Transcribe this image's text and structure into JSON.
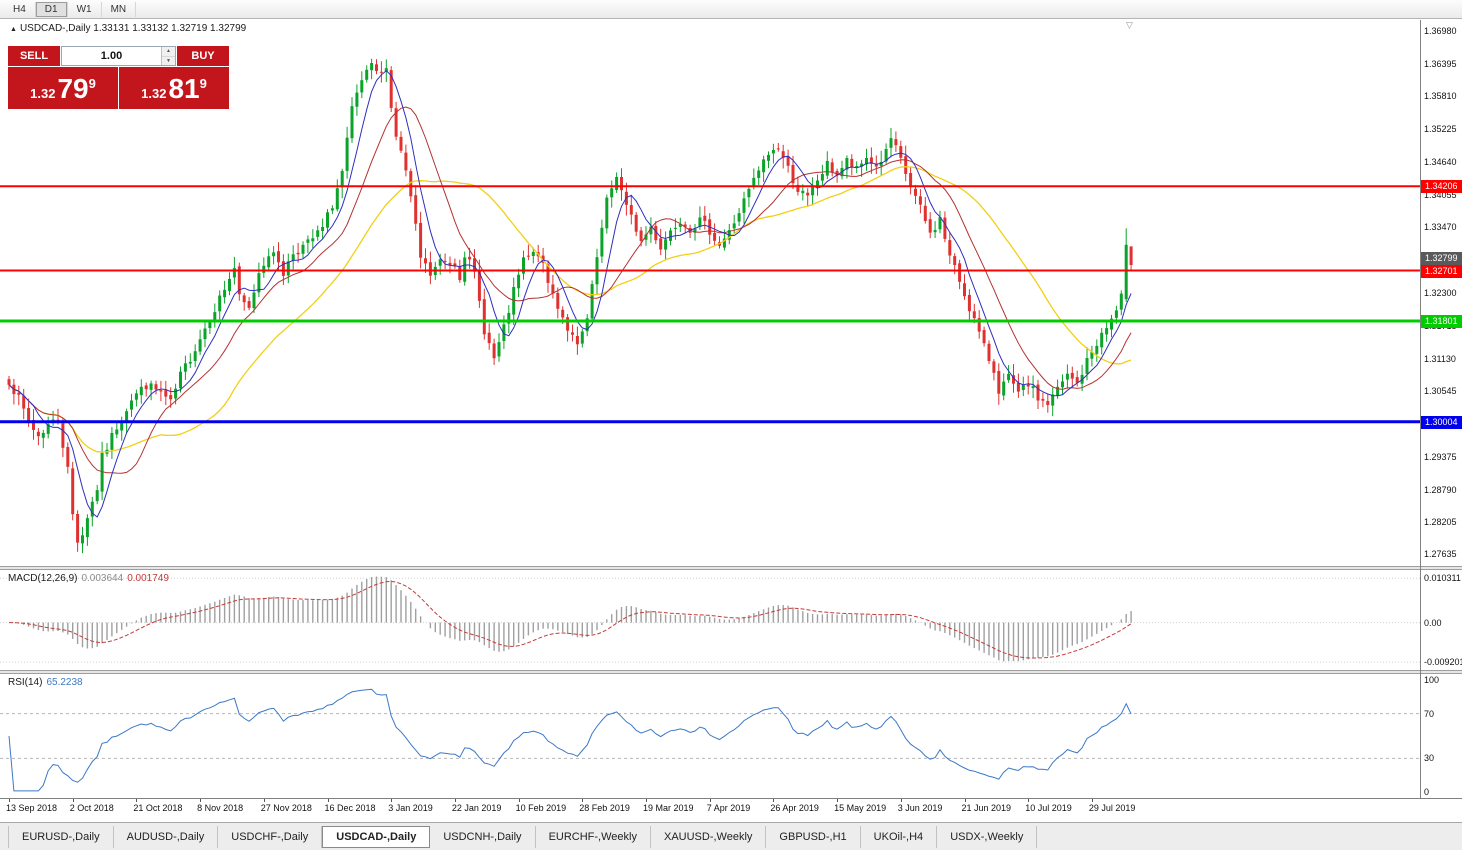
{
  "toolbar": {
    "timeframes": [
      "H4",
      "D1",
      "W1",
      "MN"
    ],
    "active": "D1"
  },
  "icons": {
    "title_marker": "▲",
    "shift_marker": "▽",
    "spin_up": "▲",
    "spin_down": "▼"
  },
  "chart_window": {
    "title_symbol": "USDCAD-,Daily",
    "title_ohlc": "1.33131 1.33132 1.32719 1.32799",
    "trade_panel": {
      "sell_label": "SELL",
      "buy_label": "BUY",
      "volume": "1.00",
      "sell_price": {
        "big": "1.32",
        "main": "79",
        "sup": "9"
      },
      "buy_price": {
        "big": "1.32",
        "main": "81",
        "sup": "9"
      },
      "panel_color": "#c3161c"
    }
  },
  "chart_data": {
    "type": "candlestick",
    "title": "USDCAD-,Daily",
    "symbol": "USDCAD",
    "timeframe": "Daily",
    "up_color": "#0ba32a",
    "down_color": "#e03131",
    "num_bars": 230,
    "bars_per_label": 13,
    "x_labels": [
      "13 Sep 2018",
      "2 Oct 2018",
      "21 Oct 2018",
      "8 Nov 2018",
      "27 Nov 2018",
      "16 Dec 2018",
      "3 Jan 2019",
      "22 Jan 2019",
      "10 Feb 2019",
      "28 Feb 2019",
      "19 Mar 2019",
      "7 Apr 2019",
      "26 Apr 2019",
      "15 May 2019",
      "3 Jun 2019",
      "21 Jun 2019",
      "10 Jul 2019",
      "29 Jul 2019"
    ],
    "y_axis_labels": [
      "1.36980",
      "1.36395",
      "1.35810",
      "1.35225",
      "1.34640",
      "1.34055",
      "1.33470",
      "1.32885",
      "1.32300",
      "1.31715",
      "1.31130",
      "1.30545",
      "1.29960",
      "1.29375",
      "1.28790",
      "1.28205",
      "1.27635"
    ],
    "price_range": {
      "max": 1.371,
      "min": 1.275
    },
    "noise_seed": 7,
    "price_anchors": [
      [
        0,
        1.3075
      ],
      [
        2,
        1.304
      ],
      [
        4,
        1.3
      ],
      [
        6,
        1.2975
      ],
      [
        8,
        1.2995
      ],
      [
        10,
        1.3005
      ],
      [
        12,
        1.2915
      ],
      [
        13,
        1.2835
      ],
      [
        14,
        1.279
      ],
      [
        15,
        1.28
      ],
      [
        16,
        1.2832
      ],
      [
        18,
        1.2882
      ],
      [
        19,
        1.2936
      ],
      [
        22,
        1.2992
      ],
      [
        25,
        1.3042
      ],
      [
        28,
        1.3066
      ],
      [
        31,
        1.3052
      ],
      [
        33,
        1.3032
      ],
      [
        35,
        1.3082
      ],
      [
        38,
        1.3132
      ],
      [
        41,
        1.3186
      ],
      [
        44,
        1.3238
      ],
      [
        46,
        1.3275
      ],
      [
        47,
        1.322
      ],
      [
        49,
        1.32
      ],
      [
        51,
        1.3268
      ],
      [
        53,
        1.3302
      ],
      [
        55,
        1.3288
      ],
      [
        56,
        1.3266
      ],
      [
        58,
        1.3302
      ],
      [
        61,
        1.3318
      ],
      [
        64,
        1.3345
      ],
      [
        66,
        1.3388
      ],
      [
        68,
        1.3445
      ],
      [
        70,
        1.3555
      ],
      [
        72,
        1.3608
      ],
      [
        74,
        1.3632
      ],
      [
        76,
        1.3618
      ],
      [
        77,
        1.364
      ],
      [
        78,
        1.356
      ],
      [
        79,
        1.3512
      ],
      [
        81,
        1.3448
      ],
      [
        82,
        1.3398
      ],
      [
        84,
        1.3292
      ],
      [
        86,
        1.3262
      ],
      [
        88,
        1.3286
      ],
      [
        91,
        1.3282
      ],
      [
        92,
        1.3262
      ],
      [
        93,
        1.3302
      ],
      [
        95,
        1.3262
      ],
      [
        97,
        1.3165
      ],
      [
        99,
        1.3112
      ],
      [
        101,
        1.3165
      ],
      [
        103,
        1.3232
      ],
      [
        105,
        1.3288
      ],
      [
        108,
        1.3302
      ],
      [
        110,
        1.3248
      ],
      [
        112,
        1.3208
      ],
      [
        114,
        1.3168
      ],
      [
        116,
        1.3132
      ],
      [
        118,
        1.3182
      ],
      [
        120,
        1.3292
      ],
      [
        122,
        1.3392
      ],
      [
        124,
        1.3442
      ],
      [
        126,
        1.3382
      ],
      [
        128,
        1.3345
      ],
      [
        129,
        1.3322
      ],
      [
        131,
        1.3348
      ],
      [
        133,
        1.3312
      ],
      [
        135,
        1.3342
      ],
      [
        137,
        1.3362
      ],
      [
        139,
        1.3346
      ],
      [
        141,
        1.3358
      ],
      [
        143,
        1.3342
      ],
      [
        145,
        1.3316
      ],
      [
        147,
        1.3338
      ],
      [
        149,
        1.3375
      ],
      [
        151,
        1.3412
      ],
      [
        153,
        1.3448
      ],
      [
        155,
        1.3478
      ],
      [
        157,
        1.349
      ],
      [
        159,
        1.3452
      ],
      [
        161,
        1.3415
      ],
      [
        163,
        1.3398
      ],
      [
        165,
        1.3432
      ],
      [
        167,
        1.3458
      ],
      [
        169,
        1.3442
      ],
      [
        171,
        1.3465
      ],
      [
        173,
        1.3448
      ],
      [
        175,
        1.3472
      ],
      [
        177,
        1.3455
      ],
      [
        179,
        1.348
      ],
      [
        180,
        1.3505
      ],
      [
        182,
        1.3465
      ],
      [
        184,
        1.342
      ],
      [
        186,
        1.338
      ],
      [
        188,
        1.3335
      ],
      [
        190,
        1.3362
      ],
      [
        192,
        1.3295
      ],
      [
        194,
        1.3252
      ],
      [
        195,
        1.3228
      ],
      [
        197,
        1.3182
      ],
      [
        199,
        1.3132
      ],
      [
        201,
        1.3092
      ],
      [
        202,
        1.3058
      ],
      [
        204,
        1.3078
      ],
      [
        206,
        1.3048
      ],
      [
        208,
        1.3068
      ],
      [
        210,
        1.3042
      ],
      [
        212,
        1.3032
      ],
      [
        214,
        1.3058
      ],
      [
        216,
        1.3082
      ],
      [
        218,
        1.3068
      ],
      [
        220,
        1.3108
      ],
      [
        222,
        1.3142
      ],
      [
        224,
        1.3168
      ],
      [
        226,
        1.3198
      ],
      [
        227,
        1.3222
      ],
      [
        228,
        1.3316
      ],
      [
        229,
        1.328
      ]
    ],
    "final_bars": [
      {
        "o": 1.3219,
        "h": 1.33455,
        "l": 1.3214,
        "c": 1.3316
      },
      {
        "o": 1.33131,
        "h": 1.33132,
        "l": 1.32719,
        "c": 1.32799
      }
    ],
    "hlines": [
      {
        "price": 1.34206,
        "label": "1.34206",
        "color": "#ff0000",
        "width": 2
      },
      {
        "price": 1.32701,
        "label": "1.32701",
        "color": "#ff0000",
        "width": 2
      },
      {
        "price": 1.31801,
        "label": "1.31801",
        "color": "#00cc00",
        "width": 3
      },
      {
        "price": 1.30004,
        "label": "1.30004",
        "color": "#0000ee",
        "width": 3
      }
    ],
    "current_price": {
      "value": 1.32799,
      "label": "1.32799",
      "color": "#5a5a5a"
    },
    "moving_averages": [
      {
        "period": 32,
        "color": "#f2cf14",
        "width": 1.3
      },
      {
        "period": 14,
        "color": "#b43232",
        "width": 1
      },
      {
        "period": 6,
        "color": "#2e2ebe",
        "width": 1
      }
    ],
    "macd": {
      "label": "MACD(12,26,9)",
      "values": [
        "0.003644",
        "0.001749"
      ],
      "axis_labels": [
        "0.010311",
        "0.00",
        "-0.009201"
      ],
      "vmax": 0.0113,
      "vmin": -0.0101,
      "fast": 12,
      "slow": 26,
      "signal_period": 9,
      "hist_color": "#a0a0a0",
      "signal_color": "#c53b3b"
    },
    "rsi": {
      "label": "RSI(14)",
      "value": "65.2238",
      "period": 14,
      "axis_labels": [
        "100",
        "70",
        "30",
        "0"
      ],
      "levels": [
        70,
        30
      ],
      "line_color": "#3c78c8"
    }
  },
  "bottom_tabs": {
    "labels": [
      "EURUSD-,Daily",
      "AUDUSD-,Daily",
      "USDCHF-,Daily",
      "USDCAD-,Daily",
      "USDCNH-,Daily",
      "EURCHF-,Weekly",
      "XAUUSD-,Weekly",
      "GBPUSD-,H1",
      "UKOil-,H4",
      "USDX-,Weekly"
    ],
    "active_index": 3
  }
}
